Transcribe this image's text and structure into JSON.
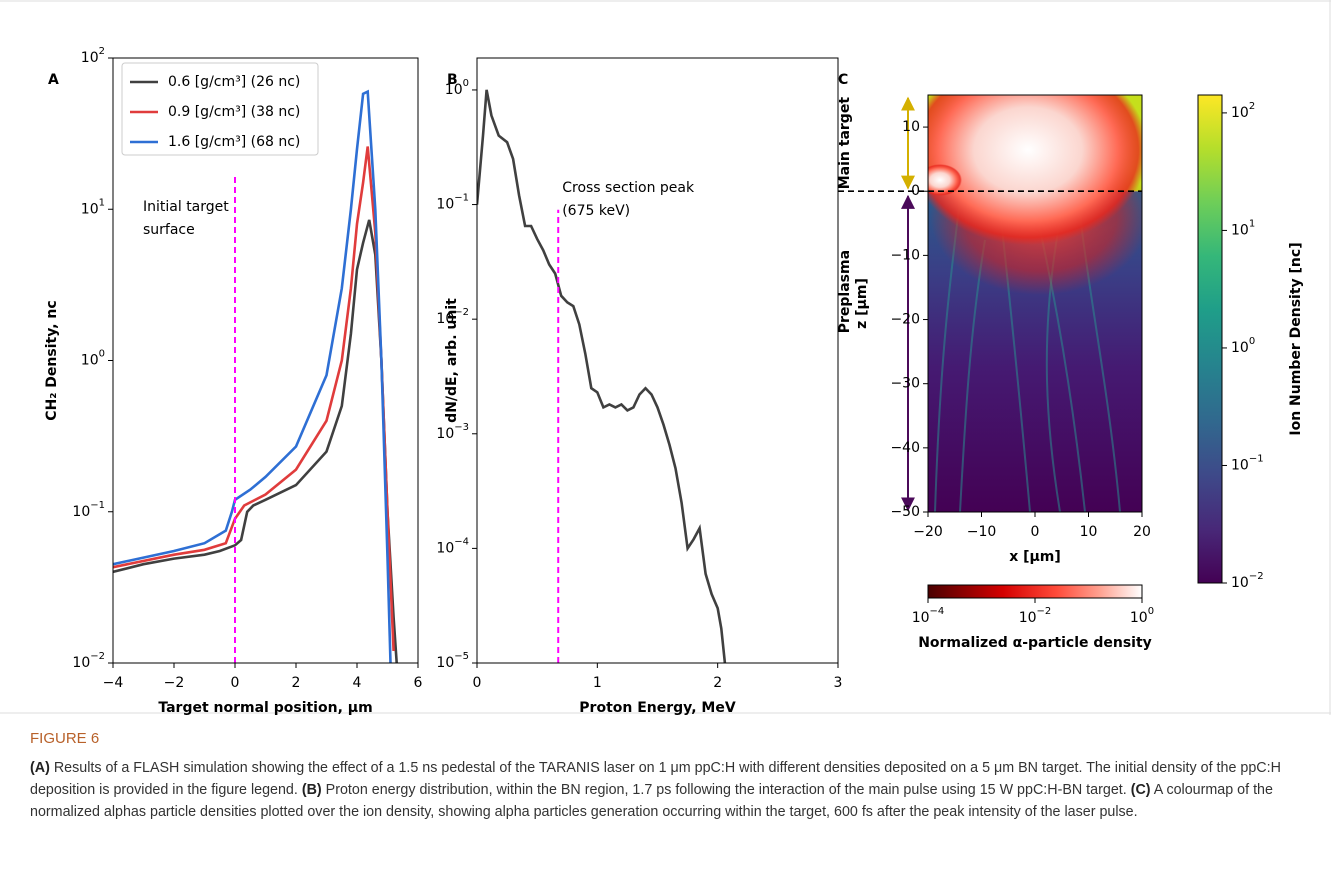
{
  "chart_data": [
    {
      "type": "line",
      "panel": "A",
      "xlabel": "Target normal position, μm",
      "ylabel": "CH₂ Density, nc",
      "yscale": "log",
      "xlim": [
        -4,
        6
      ],
      "xticks": [
        {
          "value": -4,
          "label": "−4"
        },
        {
          "value": -2,
          "label": "−2"
        },
        0,
        2,
        4,
        6
      ],
      "ylim": [
        0.01,
        100
      ],
      "yticks": [
        {
          "value": 0.01,
          "label": "10",
          "exponent": "−2"
        },
        {
          "value": 0.1,
          "label": "10",
          "exponent": "−1"
        },
        {
          "value": 1,
          "label": "10",
          "exponent": "0"
        },
        {
          "value": 10,
          "label": "10",
          "exponent": "1"
        },
        {
          "value": 100,
          "label": "10",
          "exponent": "2"
        }
      ],
      "vline": {
        "x": 0,
        "ymax": 17,
        "color": "#ff00ff"
      },
      "annotation": [
        "Initial target",
        "surface"
      ],
      "legend": "upper left",
      "series": [
        {
          "name": "0.6 [g/cm³] (26 nc)",
          "color": "#404040",
          "x": [
            -4,
            -3,
            -2,
            -1,
            -0.5,
            0,
            0.2,
            0.4,
            0.6,
            1,
            2,
            3,
            3.5,
            3.8,
            4.0,
            4.2,
            4.4,
            4.6,
            4.8,
            5.0,
            5.2,
            5.3
          ],
          "values": [
            0.04,
            0.045,
            0.049,
            0.052,
            0.055,
            0.06,
            0.065,
            0.1,
            0.11,
            0.12,
            0.15,
            0.25,
            0.5,
            1.5,
            4,
            6,
            8.5,
            5,
            1,
            0.1,
            0.02,
            0.01
          ]
        },
        {
          "name": "0.9 [g/cm³] (38 nc)",
          "color": "#e03c3c",
          "x": [
            -4,
            -2,
            -1,
            -0.3,
            0,
            0.3,
            1,
            2,
            3,
            3.5,
            3.8,
            4.0,
            4.2,
            4.35,
            4.6,
            4.8,
            5.0,
            5.2
          ],
          "values": [
            0.043,
            0.052,
            0.056,
            0.062,
            0.09,
            0.11,
            0.13,
            0.19,
            0.4,
            1,
            3,
            8,
            15,
            26,
            7,
            1,
            0.1,
            0.012
          ]
        },
        {
          "name": "1.6 [g/cm³] (68 nc)",
          "color": "#2e6fd4",
          "x": [
            -4,
            -2,
            -1,
            -0.3,
            -0.1,
            0,
            0.5,
            1,
            2,
            3,
            3.5,
            3.8,
            4.0,
            4.2,
            4.35,
            4.6,
            4.8,
            5.0,
            5.1
          ],
          "values": [
            0.045,
            0.055,
            0.062,
            0.075,
            0.1,
            0.12,
            0.14,
            0.17,
            0.27,
            0.8,
            3,
            10,
            25,
            58,
            60,
            10,
            1,
            0.05,
            0.01
          ]
        }
      ]
    },
    {
      "type": "line",
      "panel": "B",
      "xlabel": "Proton Energy, MeV",
      "ylabel": "dN/dE, arb. unit",
      "yscale": "log",
      "xlim": [
        0,
        3
      ],
      "xticks": [
        0,
        1,
        2,
        3
      ],
      "ylim": [
        1e-05,
        1.9
      ],
      "yticks": [
        {
          "value": 1e-05,
          "label": "10",
          "exponent": "−5"
        },
        {
          "value": 0.0001,
          "label": "10",
          "exponent": "−4"
        },
        {
          "value": 0.001,
          "label": "10",
          "exponent": "−3"
        },
        {
          "value": 0.01,
          "label": "10",
          "exponent": "−2"
        },
        {
          "value": 0.1,
          "label": "10",
          "exponent": "−1"
        },
        {
          "value": 1,
          "label": "10",
          "exponent": "0"
        }
      ],
      "vline": {
        "x": 0.675,
        "ymax": 0.09,
        "color": "#ff00ff"
      },
      "annotation": [
        "Cross section peak",
        "(675 keV)"
      ],
      "series": [
        {
          "color": "#404040",
          "x": [
            0,
            0.05,
            0.08,
            0.12,
            0.18,
            0.25,
            0.3,
            0.35,
            0.4,
            0.45,
            0.5,
            0.55,
            0.6,
            0.65,
            0.7,
            0.75,
            0.8,
            0.85,
            0.9,
            0.95,
            1.0,
            1.05,
            1.1,
            1.15,
            1.2,
            1.25,
            1.3,
            1.35,
            1.4,
            1.45,
            1.5,
            1.55,
            1.6,
            1.65,
            1.7,
            1.75,
            1.8,
            1.85,
            1.9,
            1.95,
            2.0,
            2.03,
            2.06
          ],
          "values": [
            0.1,
            0.4,
            1.0,
            0.6,
            0.4,
            0.35,
            0.25,
            0.12,
            0.065,
            0.065,
            0.05,
            0.04,
            0.03,
            0.025,
            0.016,
            0.014,
            0.013,
            0.009,
            0.005,
            0.0025,
            0.0023,
            0.0017,
            0.0018,
            0.0017,
            0.0018,
            0.0016,
            0.0017,
            0.0022,
            0.0025,
            0.0022,
            0.0017,
            0.0012,
            0.0008,
            0.0005,
            0.00025,
            0.0001,
            0.00012,
            0.00015,
            6e-05,
            4e-05,
            3e-05,
            2e-05,
            1e-05
          ]
        }
      ]
    },
    {
      "type": "image",
      "panel": "C",
      "xlabel": "x [μm]",
      "ylabel": "z [μm]",
      "xlim": [
        -20,
        20
      ],
      "xticks": [
        {
          "value": -20,
          "label": "−20"
        },
        {
          "value": -10,
          "label": "−10"
        },
        0,
        10,
        20
      ],
      "ylim": [
        -50,
        15
      ],
      "yticks": [
        {
          "value": -50,
          "label": "−50"
        },
        {
          "value": -40,
          "label": "−40"
        },
        {
          "value": -30,
          "label": "−30"
        },
        {
          "value": -20,
          "label": "−20"
        },
        {
          "value": -10,
          "label": "−10"
        },
        0,
        10
      ],
      "hline": 0,
      "regions": [
        "Main target",
        "Preplasma"
      ],
      "colorbar": {
        "label": "Ion Number Density [nc]",
        "lim": [
          0.01,
          142
        ],
        "ticks": [
          {
            "value": 0.01,
            "label": "10",
            "exponent": "−2"
          },
          {
            "value": 0.1,
            "label": "10",
            "exponent": "−1"
          },
          {
            "value": 1,
            "label": "10",
            "exponent": "0"
          },
          {
            "value": 10,
            "label": "10",
            "exponent": "1"
          },
          {
            "value": 100,
            "label": "10",
            "exponent": "2"
          }
        ]
      },
      "colorbar2": {
        "label": "Normalized α-particle density",
        "lim": [
          0.0001,
          1
        ],
        "ticks": [
          {
            "value": 0.0001,
            "label": "10",
            "exponent": "−4"
          },
          {
            "value": 0.01,
            "label": "10",
            "exponent": "−2"
          },
          {
            "value": 1,
            "label": "10",
            "exponent": "0"
          }
        ]
      }
    }
  ],
  "figure": {
    "label": "FIGURE 6",
    "caption": [
      {
        "tag": "(A)",
        "text": " Results of a FLASH simulation showing the effect of a 1.5 ns pedestal of the TARANIS laser on 1 μm ppC:H with different densities deposited on a 5 μm BN target. The initial density of the ppC:H deposition is provided in the figure legend. "
      },
      {
        "tag": "(B)",
        "text": " Proton energy distribution, within the BN region, 1.7 ps following the interaction of the main pulse using 15 W ppC:H-BN target. "
      },
      {
        "tag": "(C)",
        "text": " A colourmap of the normalized alphas particle densities plotted over the ion density, showing alpha particles generation occurring within the target, 600 fs after the peak intensity of the laser pulse."
      }
    ]
  }
}
